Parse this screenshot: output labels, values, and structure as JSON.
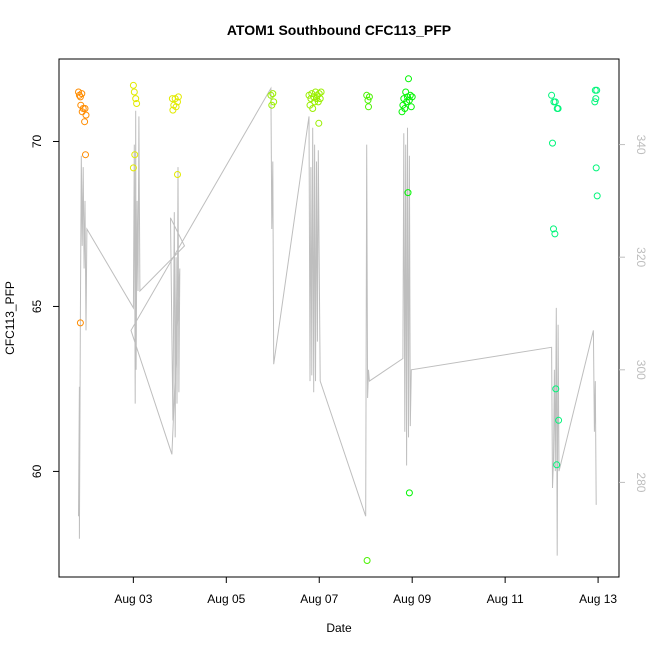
{
  "chart_data": {
    "type": "scatter",
    "title": "ATOM1 Southbound CFC113_PFP",
    "xlabel": "Date",
    "ylabel": "CFC113_PFP",
    "x_ticks": [
      "Aug 03",
      "Aug 05",
      "Aug 07",
      "Aug 09",
      "Aug 11",
      "Aug 13"
    ],
    "y_ticks": [
      "60",
      "65",
      "70"
    ],
    "y2_ticks": [
      "280",
      "300",
      "320",
      "340"
    ],
    "xlim": [
      1.4,
      13.45
    ],
    "ylim": [
      56.8,
      72.5
    ],
    "y2lim": [
      263.2,
      355.2
    ],
    "box": true,
    "grid": false,
    "legend": "none",
    "colors": {
      "axis": "#000000",
      "secondary_line": "#bebebe"
    },
    "series": [
      {
        "type": "points",
        "marker": "open-circle",
        "points": [
          {
            "x": 1.82,
            "y": 71.5,
            "c": "#ff8c00"
          },
          {
            "x": 1.84,
            "y": 71.4,
            "c": "#ff8c00"
          },
          {
            "x": 1.86,
            "y": 71.35,
            "c": "#ff8c00"
          },
          {
            "x": 1.87,
            "y": 71.1,
            "c": "#ff8c00"
          },
          {
            "x": 1.89,
            "y": 71.45,
            "c": "#ff8c00"
          },
          {
            "x": 1.9,
            "y": 70.9,
            "c": "#ff8c00"
          },
          {
            "x": 1.92,
            "y": 71.0,
            "c": "#ff8c00"
          },
          {
            "x": 1.95,
            "y": 70.6,
            "c": "#ff8c00"
          },
          {
            "x": 1.96,
            "y": 71.0,
            "c": "#ff8c00"
          },
          {
            "x": 1.98,
            "y": 70.8,
            "c": "#ff8c00"
          },
          {
            "x": 1.97,
            "y": 69.6,
            "c": "#ff8c00"
          },
          {
            "x": 1.86,
            "y": 64.5,
            "c": "#ff8c00"
          },
          {
            "x": 3.0,
            "y": 71.7,
            "c": "#e2ea00"
          },
          {
            "x": 3.02,
            "y": 71.5,
            "c": "#e2ea00"
          },
          {
            "x": 3.05,
            "y": 71.3,
            "c": "#e2ea00"
          },
          {
            "x": 3.07,
            "y": 71.15,
            "c": "#e2ea00"
          },
          {
            "x": 3.03,
            "y": 69.6,
            "c": "#e2ea00"
          },
          {
            "x": 3.0,
            "y": 69.2,
            "c": "#e2ea00"
          },
          {
            "x": 3.84,
            "y": 71.3,
            "c": "#e2ea00"
          },
          {
            "x": 3.87,
            "y": 71.1,
            "c": "#e2ea00"
          },
          {
            "x": 3.9,
            "y": 71.3,
            "c": "#e2ea00"
          },
          {
            "x": 3.92,
            "y": 71.05,
            "c": "#e2ea00"
          },
          {
            "x": 3.95,
            "y": 71.2,
            "c": "#e2ea00"
          },
          {
            "x": 3.97,
            "y": 71.35,
            "c": "#e2ea00"
          },
          {
            "x": 3.85,
            "y": 70.95,
            "c": "#e2ea00"
          },
          {
            "x": 3.95,
            "y": 69.0,
            "c": "#e2ea00"
          },
          {
            "x": 5.96,
            "y": 71.4,
            "c": "#9aef00"
          },
          {
            "x": 5.98,
            "y": 71.1,
            "c": "#9aef00"
          },
          {
            "x": 6.0,
            "y": 71.45,
            "c": "#9aef00"
          },
          {
            "x": 6.02,
            "y": 71.2,
            "c": "#9aef00"
          },
          {
            "x": 6.78,
            "y": 71.4,
            "c": "#9aef00"
          },
          {
            "x": 6.8,
            "y": 71.1,
            "c": "#9aef00"
          },
          {
            "x": 6.82,
            "y": 71.3,
            "c": "#9aef00"
          },
          {
            "x": 6.84,
            "y": 71.45,
            "c": "#9aef00"
          },
          {
            "x": 6.86,
            "y": 71.0,
            "c": "#9aef00"
          },
          {
            "x": 6.88,
            "y": 71.35,
            "c": "#9aef00"
          },
          {
            "x": 6.9,
            "y": 71.2,
            "c": "#9aef00"
          },
          {
            "x": 6.92,
            "y": 71.5,
            "c": "#9aef00"
          },
          {
            "x": 6.94,
            "y": 71.3,
            "c": "#9aef00"
          },
          {
            "x": 6.96,
            "y": 71.4,
            "c": "#9aef00"
          },
          {
            "x": 6.98,
            "y": 71.2,
            "c": "#9aef00"
          },
          {
            "x": 7.0,
            "y": 71.45,
            "c": "#9aef00"
          },
          {
            "x": 7.02,
            "y": 71.3,
            "c": "#9aef00"
          },
          {
            "x": 7.04,
            "y": 71.5,
            "c": "#9aef00"
          },
          {
            "x": 6.99,
            "y": 70.55,
            "c": "#9aef00"
          },
          {
            "x": 8.02,
            "y": 71.4,
            "c": "#4af200"
          },
          {
            "x": 8.05,
            "y": 71.25,
            "c": "#4af200"
          },
          {
            "x": 8.08,
            "y": 71.35,
            "c": "#4af200"
          },
          {
            "x": 8.06,
            "y": 71.05,
            "c": "#4af200"
          },
          {
            "x": 8.03,
            "y": 57.3,
            "c": "#4af200"
          },
          {
            "x": 8.78,
            "y": 70.9,
            "c": "#00f500"
          },
          {
            "x": 8.8,
            "y": 71.1,
            "c": "#00f500"
          },
          {
            "x": 8.82,
            "y": 71.3,
            "c": "#00f500"
          },
          {
            "x": 8.84,
            "y": 71.0,
            "c": "#00f500"
          },
          {
            "x": 8.86,
            "y": 71.5,
            "c": "#00f500"
          },
          {
            "x": 8.88,
            "y": 71.2,
            "c": "#00f500"
          },
          {
            "x": 8.9,
            "y": 71.35,
            "c": "#00f500"
          },
          {
            "x": 8.92,
            "y": 71.9,
            "c": "#00f500"
          },
          {
            "x": 8.94,
            "y": 71.25,
            "c": "#00f500"
          },
          {
            "x": 8.96,
            "y": 71.4,
            "c": "#00f500"
          },
          {
            "x": 8.98,
            "y": 71.05,
            "c": "#00f500"
          },
          {
            "x": 9.0,
            "y": 71.35,
            "c": "#00f500"
          },
          {
            "x": 8.91,
            "y": 68.45,
            "c": "#00f500"
          },
          {
            "x": 8.94,
            "y": 59.35,
            "c": "#00f500"
          },
          {
            "x": 12.0,
            "y": 71.4,
            "c": "#00f57a"
          },
          {
            "x": 12.05,
            "y": 71.2,
            "c": "#00f57a"
          },
          {
            "x": 12.08,
            "y": 71.2,
            "c": "#00f57a"
          },
          {
            "x": 12.12,
            "y": 71.0,
            "c": "#00f57a"
          },
          {
            "x": 12.14,
            "y": 71.0,
            "c": "#00f57a"
          },
          {
            "x": 12.02,
            "y": 69.95,
            "c": "#00f57a"
          },
          {
            "x": 12.04,
            "y": 67.35,
            "c": "#00f57a"
          },
          {
            "x": 12.07,
            "y": 67.2,
            "c": "#00f57a"
          },
          {
            "x": 12.09,
            "y": 62.5,
            "c": "#00f57a"
          },
          {
            "x": 12.15,
            "y": 61.55,
            "c": "#00f57a"
          },
          {
            "x": 12.11,
            "y": 60.2,
            "c": "#00f57a"
          },
          {
            "x": 12.94,
            "y": 71.55,
            "c": "#00f57a"
          },
          {
            "x": 12.97,
            "y": 71.55,
            "c": "#00f57a"
          },
          {
            "x": 12.95,
            "y": 71.3,
            "c": "#00f57a"
          },
          {
            "x": 12.93,
            "y": 71.2,
            "c": "#00f57a"
          },
          {
            "x": 12.96,
            "y": 69.2,
            "c": "#00f57a"
          },
          {
            "x": 12.98,
            "y": 68.35,
            "c": "#00f57a"
          }
        ]
      },
      {
        "type": "line",
        "axis": "right",
        "color": "#bebebe",
        "points": [
          [
            1.82,
            274
          ],
          [
            1.84,
            297
          ],
          [
            1.84,
            270
          ],
          [
            1.86,
            310
          ],
          [
            1.88,
            338
          ],
          [
            1.9,
            322
          ],
          [
            1.92,
            336
          ],
          [
            1.94,
            318
          ],
          [
            1.96,
            330
          ],
          [
            1.98,
            307
          ],
          [
            2.0,
            325
          ],
          [
            3.0,
            311
          ],
          [
            3.02,
            340
          ],
          [
            3.04,
            294
          ],
          [
            3.05,
            346
          ],
          [
            3.06,
            300
          ],
          [
            3.08,
            330
          ],
          [
            3.1,
            314
          ],
          [
            3.12,
            345
          ],
          [
            3.14,
            314
          ],
          [
            4.1,
            322
          ],
          [
            3.8,
            327
          ],
          [
            3.85,
            291
          ],
          [
            3.88,
            328
          ],
          [
            3.9,
            288
          ],
          [
            3.92,
            320
          ],
          [
            3.94,
            294
          ],
          [
            3.96,
            336
          ],
          [
            3.98,
            296
          ],
          [
            4.0,
            318
          ],
          [
            3.83,
            285
          ],
          [
            2.95,
            307
          ],
          [
            5.96,
            350
          ],
          [
            5.98,
            325
          ],
          [
            6.0,
            337
          ],
          [
            6.02,
            301
          ],
          [
            6.78,
            345
          ],
          [
            6.8,
            298
          ],
          [
            6.82,
            336
          ],
          [
            6.84,
            299
          ],
          [
            6.86,
            343
          ],
          [
            6.88,
            296
          ],
          [
            6.9,
            340
          ],
          [
            6.92,
            298
          ],
          [
            6.94,
            337
          ],
          [
            6.96,
            305
          ],
          [
            6.98,
            339
          ],
          [
            7.0,
            319
          ],
          [
            7.02,
            298
          ],
          [
            8.0,
            274
          ],
          [
            8.02,
            340
          ],
          [
            8.04,
            295
          ],
          [
            8.06,
            300
          ],
          [
            8.08,
            298
          ],
          [
            8.8,
            302
          ],
          [
            8.82,
            342
          ],
          [
            8.84,
            289
          ],
          [
            8.86,
            340
          ],
          [
            8.88,
            283
          ],
          [
            8.9,
            343
          ],
          [
            8.92,
            288
          ],
          [
            8.94,
            338
          ],
          [
            8.96,
            290
          ],
          [
            8.98,
            300
          ],
          [
            12.0,
            304
          ],
          [
            12.02,
            279
          ],
          [
            12.04,
            284
          ],
          [
            12.06,
            300
          ],
          [
            12.08,
            282
          ],
          [
            12.1,
            311
          ],
          [
            12.12,
            267
          ],
          [
            12.14,
            308
          ],
          [
            12.16,
            282
          ],
          [
            12.9,
            307
          ],
          [
            12.92,
            289
          ],
          [
            12.94,
            298
          ],
          [
            12.96,
            276
          ]
        ]
      }
    ]
  }
}
